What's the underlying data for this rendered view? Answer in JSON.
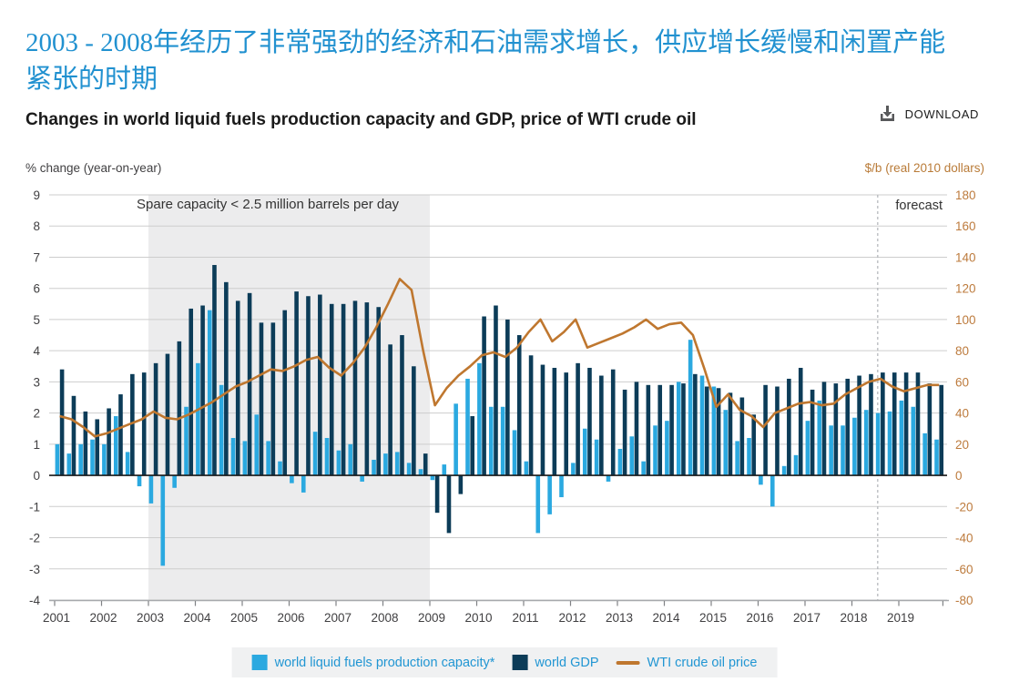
{
  "page": {
    "title_cn": "2003 - 2008年经历了非常强劲的经济和石油需求增长，供应增长缓慢和闲置产能紧张的时期",
    "subtitle": "Changes in world liquid fuels production capacity and GDP, price of WTI crude oil",
    "download_label": "DOWNLOAD"
  },
  "axes": {
    "left_unit": "% change (year-on-year)",
    "right_unit": "$/b (real 2010 dollars)",
    "left_ticks": [
      9,
      8,
      7,
      6,
      5,
      4,
      3,
      2,
      1,
      0,
      -1,
      -2,
      -3,
      -4
    ],
    "right_ticks": [
      180,
      160,
      140,
      120,
      100,
      80,
      60,
      40,
      20,
      0,
      -20,
      -40,
      -60,
      -80
    ],
    "years": [
      2001,
      2002,
      2003,
      2004,
      2005,
      2006,
      2007,
      2008,
      2009,
      2010,
      2011,
      2012,
      2013,
      2014,
      2015,
      2016,
      2017,
      2018,
      2019
    ]
  },
  "annotations": {
    "spare_capacity": "Spare capacity < 2.5 million barrels per day",
    "forecast_label": "forecast",
    "shaded_period": {
      "from_year": 2003,
      "to_year": 2009
    },
    "forecast_start_year": 2018.55
  },
  "colors": {
    "capacity_bar": "#2ba9e0",
    "gdp_bar": "#0c3c58",
    "wti_line": "#bf772f",
    "right_axis_text": "#bd7b3d",
    "left_axis_text": "#414042",
    "gridline": "#cdcdcd",
    "zero_line": "#1a1a1a",
    "shade": "#ececed",
    "forecast_rule": "#b0b4b8",
    "legend_text": "#2196d3",
    "title_blue": "#2191d0"
  },
  "legend": [
    {
      "label": "world liquid fuels production capacity*",
      "swatch": "square",
      "color": "#2ba9e0"
    },
    {
      "label": "world GDP",
      "swatch": "square",
      "color": "#0c3c58"
    },
    {
      "label": "WTI crude oil price",
      "swatch": "line",
      "color": "#bf772f"
    }
  ],
  "chart_data": {
    "type": "bar",
    "note": "quarterly data, 2001Q1 - 2019Q4; bars on left axis (% change y/y), line on right axis ($/b real 2010 dollars)",
    "frequency": "quarterly",
    "x_start_year": 2001,
    "left_axis": {
      "label": "% change (year-on-year)",
      "range": [
        -4,
        9
      ],
      "grid_step": 1
    },
    "right_axis": {
      "label": "$/b (real 2010 dollars)",
      "range": [
        -80,
        180
      ],
      "grid_step": 20
    },
    "legend_position": "bottom",
    "series": [
      {
        "name": "world liquid fuels production capacity*",
        "type": "bar",
        "axis": "left",
        "color": "#2ba9e0",
        "values": [
          1.0,
          0.7,
          1.0,
          1.15,
          1.0,
          1.9,
          0.75,
          -0.35,
          -0.9,
          -2.9,
          -0.4,
          2.2,
          3.6,
          5.3,
          2.9,
          1.2,
          1.1,
          1.95,
          1.1,
          0.45,
          -0.25,
          -0.55,
          1.4,
          1.2,
          0.8,
          1.0,
          -0.2,
          0.5,
          0.7,
          0.75,
          0.4,
          0.2,
          -0.15,
          0.35,
          2.3,
          3.1,
          3.6,
          2.2,
          2.2,
          1.45,
          0.45,
          -1.85,
          -1.25,
          -0.7,
          0.4,
          1.5,
          1.15,
          -0.2,
          0.85,
          1.25,
          0.45,
          1.6,
          1.75,
          3.0,
          4.35,
          3.2,
          2.85,
          2.1,
          1.1,
          1.2,
          -0.3,
          -1.0,
          0.3,
          0.65,
          1.75,
          2.4,
          1.6,
          1.6,
          1.85,
          2.1,
          2.0,
          2.05,
          2.4,
          2.2,
          1.35,
          1.15
        ]
      },
      {
        "name": "world GDP",
        "type": "bar",
        "axis": "left",
        "color": "#0c3c58",
        "values": [
          3.4,
          2.55,
          2.05,
          1.8,
          2.15,
          2.6,
          3.25,
          3.3,
          3.6,
          3.9,
          4.3,
          5.35,
          5.45,
          6.75,
          6.2,
          5.6,
          5.85,
          4.9,
          4.9,
          5.3,
          5.9,
          5.75,
          5.8,
          5.5,
          5.5,
          5.6,
          5.55,
          5.4,
          4.2,
          4.5,
          3.5,
          0.7,
          -1.2,
          -1.85,
          -0.6,
          1.9,
          5.1,
          5.45,
          5.0,
          4.5,
          3.85,
          3.55,
          3.45,
          3.3,
          3.6,
          3.45,
          3.2,
          3.4,
          2.75,
          3.0,
          2.9,
          2.9,
          2.9,
          2.95,
          3.25,
          2.85,
          2.8,
          2.65,
          2.5,
          1.95,
          2.9,
          2.85,
          3.1,
          3.45,
          2.75,
          3.0,
          2.95,
          3.1,
          3.2,
          3.25,
          3.3,
          3.3,
          3.3,
          3.3,
          2.95,
          2.9
        ]
      },
      {
        "name": "WTI crude oil price",
        "type": "line",
        "axis": "right",
        "color": "#bf772f",
        "values": [
          38,
          36,
          31,
          25,
          27,
          30,
          33,
          36,
          41,
          37,
          36,
          39,
          43,
          47,
          52,
          57,
          60,
          64,
          68,
          67,
          70,
          74,
          76,
          69,
          64,
          72,
          82,
          95,
          110,
          126,
          119,
          80,
          45,
          56,
          64,
          70,
          77,
          79,
          76,
          82,
          92,
          100,
          86,
          92,
          100,
          82,
          85,
          88,
          91,
          95,
          100,
          94,
          97,
          98,
          90,
          68,
          44,
          52,
          42,
          38,
          31,
          40,
          43,
          46,
          47,
          45,
          46,
          52,
          56,
          60,
          62,
          57,
          54,
          56,
          58,
          58
        ]
      }
    ]
  }
}
